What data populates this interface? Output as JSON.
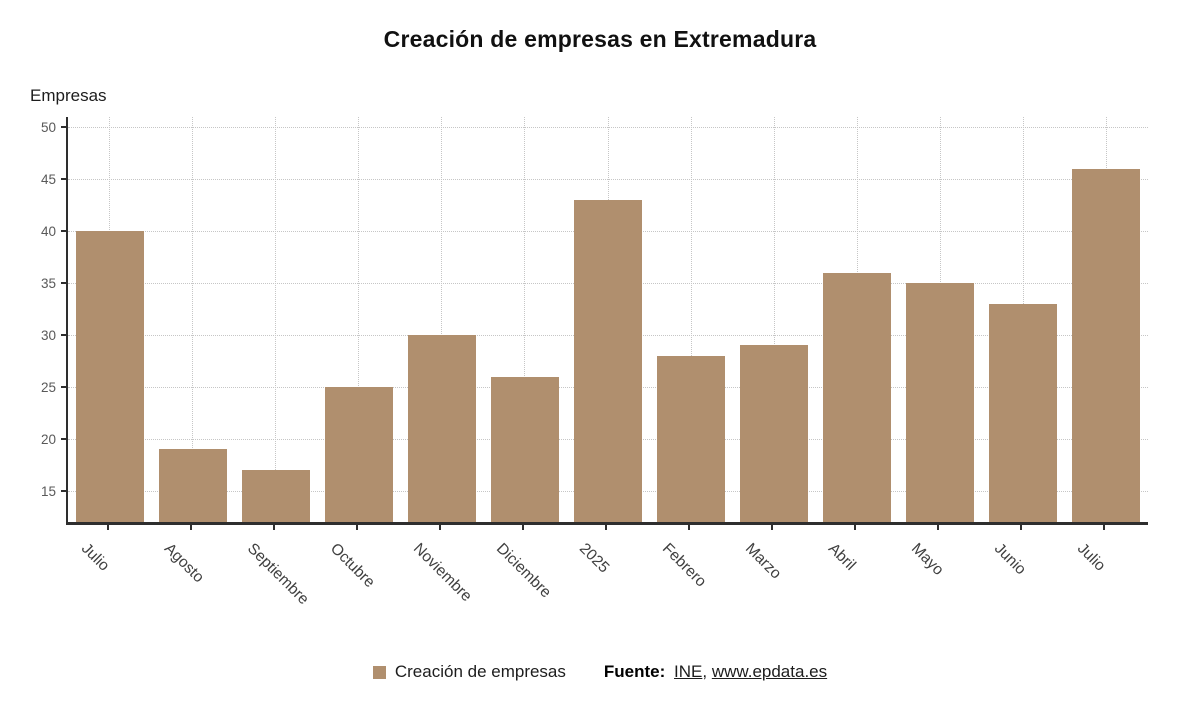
{
  "title": "Creación de empresas en Extremadura",
  "y_axis_title": "Empresas",
  "chart_data": {
    "type": "bar",
    "categories": [
      "Julio",
      "Agosto",
      "Septiembre",
      "Octubre",
      "Noviembre",
      "Diciembre",
      "2025",
      "Febrero",
      "Marzo",
      "Abril",
      "Mayo",
      "Junio",
      "Julio"
    ],
    "values": [
      40,
      19,
      17,
      25,
      30,
      26,
      43,
      28,
      29,
      36,
      35,
      33,
      46
    ],
    "series_name": "Creación de empresas",
    "title": "Creación de empresas en Extremadura",
    "xlabel": "",
    "ylabel": "Empresas",
    "ylim": [
      12,
      51
    ],
    "yticks": [
      15,
      20,
      25,
      30,
      35,
      40,
      45,
      50
    ],
    "grid": true,
    "legend_position": "bottom",
    "bar_color": "#b08f6e"
  },
  "legend": {
    "label": "Creación de empresas",
    "swatch_color": "#b08f6e"
  },
  "footer": {
    "fuente_label": "Fuente:",
    "source_1": "INE",
    "separator": ",",
    "source_2": "www.epdata.es"
  },
  "colors": {
    "bar": "#b08f6e",
    "axis": "#2e2e2e",
    "gridline": "#c6c6c6",
    "tick_label": "#595959",
    "category_label": "#3f3f3f",
    "title": "#111111"
  }
}
